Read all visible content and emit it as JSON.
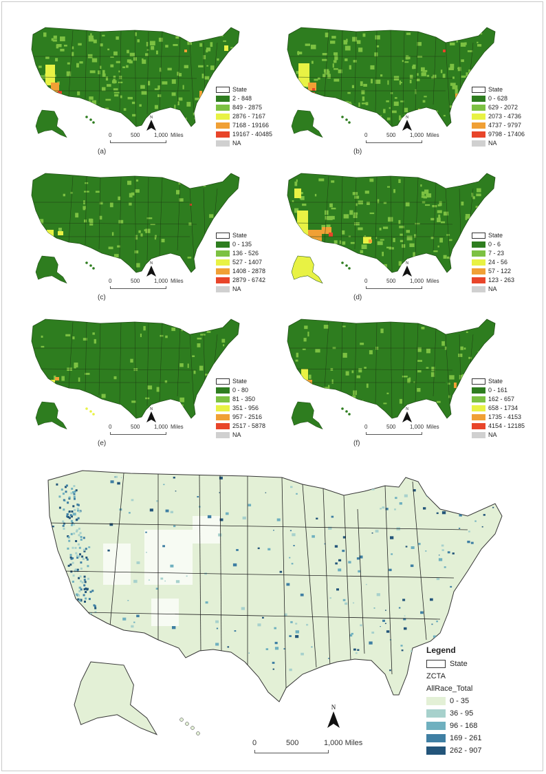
{
  "panels": [
    {
      "caption": "(a)",
      "state_label": "State",
      "na_label": "NA",
      "classes": [
        "2 - 848",
        "849 - 2875",
        "2876 - 7167",
        "7168 - 19166",
        "19167 - 40485"
      ]
    },
    {
      "caption": "(b)",
      "state_label": "State",
      "na_label": "NA",
      "classes": [
        "0 - 628",
        "629 - 2072",
        "2073 - 4736",
        "4737 - 9797",
        "9798 - 17406"
      ]
    },
    {
      "caption": "(c)",
      "state_label": "State",
      "na_label": "NA",
      "classes": [
        "0 - 135",
        "136 - 526",
        "527 - 1407",
        "1408 - 2878",
        "2879 - 6742"
      ]
    },
    {
      "caption": "(d)",
      "state_label": "State",
      "na_label": "NA",
      "classes": [
        "0 - 6",
        "7 - 23",
        "24 - 56",
        "57 - 122",
        "123 - 263"
      ]
    },
    {
      "caption": "(e)",
      "state_label": "State",
      "na_label": "NA",
      "classes": [
        "0 - 80",
        "81 - 350",
        "351 - 956",
        "957 - 2516",
        "2517 - 5878"
      ]
    },
    {
      "caption": "(f)",
      "state_label": "State",
      "na_label": "NA",
      "classes": [
        "0 - 161",
        "162 - 657",
        "658 - 1734",
        "1735 - 4153",
        "4154 - 12185"
      ]
    }
  ],
  "small_scale": {
    "labels": [
      "0",
      "500",
      "1,000",
      "Miles"
    ],
    "north": "N"
  },
  "small_colors": [
    "#2e7d1f",
    "#7cc142",
    "#e8f244",
    "#f0a035",
    "#e8452a",
    "#d0d0d0"
  ],
  "big": {
    "legend_title": "Legend",
    "state_label": "State",
    "layer_label": "ZCTA",
    "field_label": "AllRace_Total",
    "classes": [
      "0 - 35",
      "36 - 95",
      "96 - 168",
      "169 - 261",
      "262 - 907"
    ],
    "colors": [
      "#e3f0d6",
      "#a7d1cc",
      "#6fb0bf",
      "#3f7fa3",
      "#23557a"
    ],
    "scale_labels": [
      "0",
      "500",
      "1,000 Miles"
    ],
    "north": "N"
  }
}
